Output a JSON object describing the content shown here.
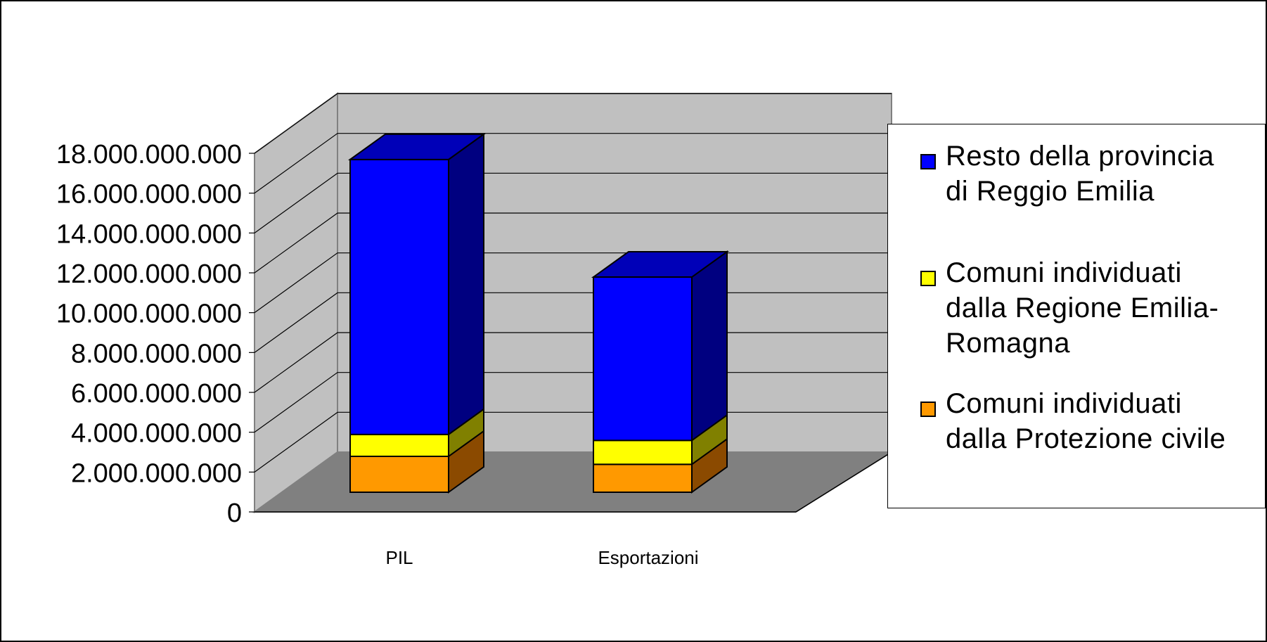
{
  "chart_data": {
    "type": "bar",
    "stacked": true,
    "three_d": true,
    "categories": [
      "PIL",
      "Esportazioni"
    ],
    "series": [
      {
        "name": "Comuni individuati dalla Protezione civile",
        "values": [
          1800000000,
          1400000000
        ],
        "color": "#FF9900",
        "side_color": "#8B4A00",
        "top_color": "#B86E00"
      },
      {
        "name": "Comuni individuati dalla Regione Emilia-Romagna",
        "values": [
          1100000000,
          1200000000
        ],
        "color": "#FFFF00",
        "side_color": "#808000",
        "top_color": "#B3B300"
      },
      {
        "name": "Resto della provincia di Reggio Emilia",
        "values": [
          13800000000,
          8200000000
        ],
        "color": "#0000FF",
        "side_color": "#000080",
        "top_color": "#0000B8"
      }
    ],
    "yticks": [
      "0",
      "2.000.000.000",
      "4.000.000.000",
      "6.000.000.000",
      "8.000.000.000",
      "10.000.000.000",
      "12.000.000.000",
      "14.000.000.000",
      "16.000.000.000",
      "18.000.000.000"
    ],
    "ylim": [
      0,
      18000000000
    ],
    "grid": true,
    "legend_position": "right",
    "title": "",
    "xlabel": "",
    "ylabel": ""
  },
  "legend": {
    "items": [
      {
        "label_lines": [
          "Resto della provincia",
          "di Reggio Emilia"
        ],
        "color": "#0000FF"
      },
      {
        "label_lines": [
          "Comuni individuati",
          "dalla Regione Emilia-",
          "Romagna"
        ],
        "color": "#FFFF00"
      },
      {
        "label_lines": [
          "Comuni individuati",
          "dalla Protezione civile"
        ],
        "color": "#FF9900"
      }
    ]
  }
}
